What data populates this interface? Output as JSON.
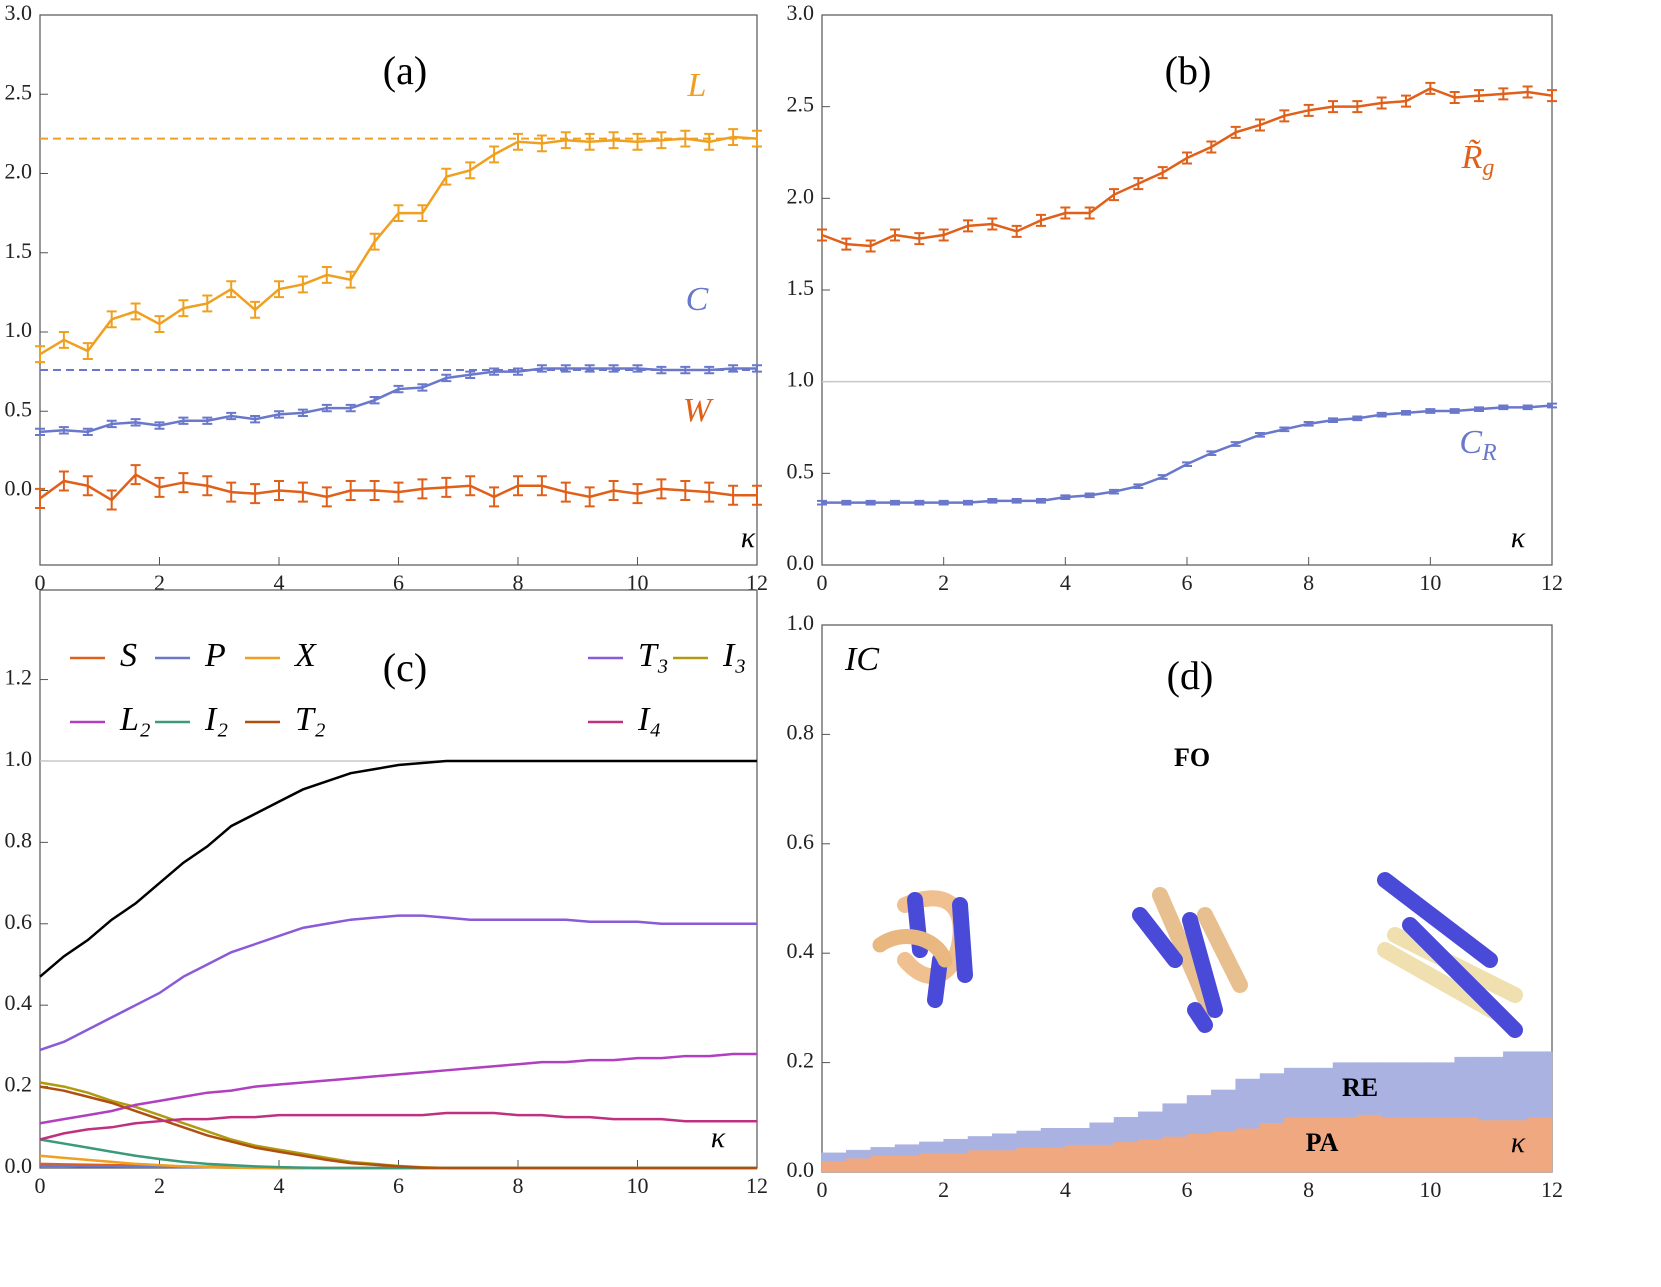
{
  "chart_data": [
    {
      "type": "line",
      "x": [
        0,
        0.4,
        0.8,
        1.2,
        1.6,
        2,
        2.4,
        2.8,
        3.2,
        3.6,
        4,
        4.4,
        4.8,
        5.2,
        5.6,
        6,
        6.4,
        6.8,
        7.2,
        7.6,
        8,
        8.4,
        8.8,
        9.2,
        9.6,
        10,
        10.4,
        10.8,
        11.2,
        11.6,
        12
      ],
      "series": [
        {
          "name": "L",
          "color": "#f0a020",
          "error": 0.05,
          "values": [
            0.86,
            0.95,
            0.88,
            1.08,
            1.13,
            1.05,
            1.15,
            1.18,
            1.27,
            1.14,
            1.27,
            1.3,
            1.36,
            1.33,
            1.57,
            1.75,
            1.75,
            1.98,
            2.02,
            2.12,
            2.2,
            2.19,
            2.21,
            2.2,
            2.21,
            2.2,
            2.21,
            2.22,
            2.2,
            2.23,
            2.22
          ]
        },
        {
          "name": "C",
          "color": "#6a78cc",
          "error": 0.02,
          "values": [
            0.37,
            0.38,
            0.37,
            0.42,
            0.43,
            0.41,
            0.44,
            0.44,
            0.47,
            0.45,
            0.48,
            0.49,
            0.52,
            0.52,
            0.57,
            0.64,
            0.65,
            0.71,
            0.73,
            0.75,
            0.75,
            0.77,
            0.77,
            0.77,
            0.77,
            0.77,
            0.76,
            0.76,
            0.76,
            0.77,
            0.77
          ]
        },
        {
          "name": "W",
          "color": "#e0601a",
          "error": 0.06,
          "values": [
            -0.05,
            0.06,
            0.03,
            -0.06,
            0.1,
            0.02,
            0.05,
            0.03,
            -0.01,
            -0.02,
            0,
            -0.01,
            -0.04,
            0,
            0,
            -0.01,
            0.01,
            0.02,
            0.03,
            -0.04,
            0.03,
            0.03,
            -0.01,
            -0.04,
            0,
            -0.02,
            0.01,
            0,
            -0.01,
            -0.03,
            -0.03
          ]
        }
      ],
      "hlines": [
        {
          "value": 2.22,
          "color": "#f0a020",
          "dashed": true
        },
        {
          "value": 0.76,
          "color": "#6a78cc",
          "dashed": true
        }
      ],
      "annotations": [
        {
          "text": "(a)",
          "color": "#000"
        },
        {
          "text": "L",
          "color": "#f0a020"
        },
        {
          "text": "C",
          "color": "#6a78cc"
        },
        {
          "text": "W",
          "color": "#e0601a"
        },
        {
          "text": "κ",
          "color": "#000"
        }
      ],
      "xlim": [
        0,
        12
      ],
      "xticks": [
        0,
        2,
        4,
        6,
        8,
        10,
        12
      ],
      "ylim": [
        -0.47,
        3
      ],
      "yticks": [
        {
          "value": 0,
          "label": "0.0"
        },
        0.5,
        {
          "value": 1,
          "label": "1.0"
        },
        1.5,
        {
          "value": 2,
          "label": "2.0"
        },
        2.5,
        {
          "value": 3,
          "label": "3.0"
        }
      ]
    },
    {
      "type": "line",
      "x": [
        0,
        0.4,
        0.8,
        1.2,
        1.6,
        2,
        2.4,
        2.8,
        3.2,
        3.6,
        4,
        4.4,
        4.8,
        5.2,
        5.6,
        6,
        6.4,
        6.8,
        7.2,
        7.6,
        8,
        8.4,
        8.8,
        9.2,
        9.6,
        10,
        10.4,
        10.8,
        11.2,
        11.6,
        12
      ],
      "series": [
        {
          "color": "#e0601a",
          "error": 0.03,
          "values": [
            1.8,
            1.75,
            1.74,
            1.8,
            1.78,
            1.8,
            1.85,
            1.86,
            1.82,
            1.88,
            1.92,
            1.92,
            2.02,
            2.08,
            2.14,
            2.22,
            2.28,
            2.36,
            2.4,
            2.45,
            2.48,
            2.5,
            2.5,
            2.52,
            2.53,
            2.6,
            2.55,
            2.56,
            2.57,
            2.58,
            2.56
          ]
        },
        {
          "color": "#6a78cc",
          "error": 0.01,
          "values": [
            0.34,
            0.34,
            0.34,
            0.34,
            0.34,
            0.34,
            0.34,
            0.35,
            0.35,
            0.35,
            0.37,
            0.38,
            0.4,
            0.43,
            0.48,
            0.55,
            0.61,
            0.66,
            0.71,
            0.74,
            0.77,
            0.79,
            0.8,
            0.82,
            0.83,
            0.84,
            0.84,
            0.85,
            0.86,
            0.86,
            0.87
          ]
        }
      ],
      "hlines": [
        {
          "value": 1,
          "color": "#c8c8c8",
          "dashed": false
        }
      ],
      "annotations": [
        {
          "text": "(b)",
          "color": "#000"
        },
        {
          "text": "R̃",
          "sub": "g",
          "color": "#e0601a"
        },
        {
          "text": "C",
          "sub": "R",
          "color": "#6a78cc"
        },
        {
          "text": "κ",
          "color": "#000"
        }
      ],
      "xlim": [
        0,
        12
      ],
      "xticks": [
        0,
        2,
        4,
        6,
        8,
        10,
        12
      ],
      "ylim": [
        0,
        3
      ],
      "yticks": [
        {
          "value": 0,
          "label": "0.0"
        },
        0.5,
        {
          "value": 1,
          "label": "1.0"
        },
        1.5,
        {
          "value": 2,
          "label": "2.0"
        },
        2.5,
        {
          "value": 3,
          "label": "3.0"
        }
      ]
    },
    {
      "type": "line",
      "x": [
        0,
        0.4,
        0.8,
        1.2,
        1.6,
        2,
        2.4,
        2.8,
        3.2,
        3.6,
        4,
        4.4,
        4.8,
        5.2,
        5.6,
        6,
        6.4,
        6.8,
        7.2,
        7.6,
        8,
        8.4,
        8.8,
        9.2,
        9.6,
        10,
        10.4,
        10.8,
        11.2,
        11.6,
        12
      ],
      "series": [
        {
          "name": "S",
          "color": "#e0601a",
          "values": [
            0.01,
            0.009,
            0.008,
            0.007,
            0.006,
            0.005,
            0.004,
            0.003,
            0.002,
            0.001,
            0,
            0,
            0,
            0,
            0,
            0,
            0,
            0,
            0,
            0,
            0,
            0,
            0,
            0,
            0,
            0,
            0,
            0,
            0,
            0,
            0
          ]
        },
        {
          "name": "P",
          "color": "#6a78cc",
          "values": [
            0.005,
            0.005,
            0.004,
            0.004,
            0.003,
            0.003,
            0.002,
            0.002,
            0.001,
            0.001,
            0,
            0,
            0,
            0,
            0,
            0,
            0,
            0,
            0,
            0,
            0,
            0,
            0,
            0,
            0,
            0,
            0,
            0,
            0,
            0,
            0
          ]
        },
        {
          "name": "X",
          "color": "#f0a020",
          "values": [
            0.03,
            0.025,
            0.02,
            0.015,
            0.01,
            0.007,
            0.004,
            0.002,
            0.001,
            0,
            0,
            0,
            0,
            0,
            0,
            0,
            0,
            0,
            0,
            0,
            0,
            0,
            0,
            0,
            0,
            0,
            0,
            0,
            0,
            0,
            0
          ]
        },
        {
          "name": "T₃",
          "color": "#8a5ad8",
          "values": [
            0.29,
            0.31,
            0.34,
            0.37,
            0.4,
            0.43,
            0.47,
            0.5,
            0.53,
            0.55,
            0.57,
            0.59,
            0.6,
            0.61,
            0.615,
            0.62,
            0.62,
            0.615,
            0.61,
            0.61,
            0.61,
            0.61,
            0.61,
            0.605,
            0.605,
            0.605,
            0.6,
            0.6,
            0.6,
            0.6,
            0.6
          ]
        },
        {
          "name": "I₃",
          "color": "#b09a10",
          "values": [
            0.21,
            0.2,
            0.185,
            0.165,
            0.15,
            0.13,
            0.11,
            0.09,
            0.07,
            0.055,
            0.045,
            0.035,
            0.025,
            0.015,
            0.01,
            0.005,
            0.002,
            0,
            0,
            0,
            0,
            0,
            0,
            0,
            0,
            0,
            0,
            0,
            0,
            0,
            0
          ]
        },
        {
          "name": "L₂",
          "color": "#b040c0",
          "values": [
            0.11,
            0.12,
            0.13,
            0.14,
            0.155,
            0.165,
            0.175,
            0.185,
            0.19,
            0.2,
            0.205,
            0.21,
            0.215,
            0.22,
            0.225,
            0.23,
            0.235,
            0.24,
            0.245,
            0.25,
            0.255,
            0.26,
            0.26,
            0.265,
            0.265,
            0.27,
            0.27,
            0.275,
            0.275,
            0.28,
            0.28
          ]
        },
        {
          "name": "I₂",
          "color": "#3a9a7a",
          "values": [
            0.07,
            0.06,
            0.05,
            0.04,
            0.03,
            0.022,
            0.015,
            0.01,
            0.007,
            0.004,
            0.002,
            0.001,
            0,
            0,
            0,
            0,
            0,
            0,
            0,
            0,
            0,
            0,
            0,
            0,
            0,
            0,
            0,
            0,
            0,
            0,
            0
          ]
        },
        {
          "name": "T₂",
          "color": "#b05010",
          "values": [
            0.2,
            0.19,
            0.175,
            0.16,
            0.14,
            0.12,
            0.1,
            0.08,
            0.065,
            0.05,
            0.04,
            0.03,
            0.02,
            0.012,
            0.008,
            0.004,
            0.001,
            0,
            0,
            0,
            0,
            0,
            0,
            0,
            0,
            0,
            0,
            0,
            0,
            0,
            0
          ]
        },
        {
          "name": "I₄",
          "color": "#c03080",
          "values": [
            0.07,
            0.085,
            0.095,
            0.1,
            0.11,
            0.115,
            0.12,
            0.12,
            0.125,
            0.125,
            0.13,
            0.13,
            0.13,
            0.13,
            0.13,
            0.13,
            0.13,
            0.135,
            0.135,
            0.135,
            0.13,
            0.13,
            0.125,
            0.125,
            0.12,
            0.12,
            0.12,
            0.115,
            0.115,
            0.115,
            0.115
          ]
        },
        {
          "color": "#000000",
          "values": [
            0.47,
            0.52,
            0.56,
            0.61,
            0.65,
            0.7,
            0.75,
            0.79,
            0.84,
            0.87,
            0.9,
            0.93,
            0.95,
            0.97,
            0.98,
            0.99,
            0.995,
            1,
            1,
            1,
            1,
            1,
            1,
            1,
            1,
            1,
            1,
            1,
            1,
            1,
            1
          ]
        }
      ],
      "hlines": [
        {
          "value": 1,
          "color": "#c8c8c8",
          "dashed": false
        }
      ],
      "annotations": [
        {
          "text": "(c)",
          "color": "#000"
        },
        {
          "text": "κ",
          "color": "#000"
        }
      ],
      "xlim": [
        0,
        12
      ],
      "xticks": [
        0,
        2,
        4,
        6,
        8,
        10,
        12
      ],
      "ylim": [
        0,
        1.42
      ],
      "yticks": [
        {
          "value": 0,
          "label": "0.0"
        },
        0.2,
        0.4,
        0.6,
        0.8,
        {
          "value": 1,
          "label": "1.0"
        },
        1.2
      ]
    },
    {
      "type": "histogram",
      "bins": [
        0,
        0.4,
        0.8,
        1.2,
        1.6,
        2,
        2.4,
        2.8,
        3.2,
        3.6,
        4,
        4.4,
        4.8,
        5.2,
        5.6,
        6,
        6.4,
        6.8,
        7.2,
        7.6,
        8,
        8.4,
        8.8,
        9.2,
        9.6,
        10,
        10.4,
        10.8,
        11.2,
        11.6,
        12
      ],
      "series": [
        {
          "name": "PA",
          "color": "#f0a880",
          "values": [
            0.02,
            0.025,
            0.03,
            0.03,
            0.035,
            0.035,
            0.04,
            0.04,
            0.045,
            0.045,
            0.05,
            0.05,
            0.055,
            0.06,
            0.065,
            0.07,
            0.075,
            0.08,
            0.09,
            0.1,
            0.1,
            0.1,
            0.105,
            0.1,
            0.1,
            0.1,
            0.1,
            0.095,
            0.095,
            0.1
          ]
        },
        {
          "name": "RE",
          "color": "#aab2e2",
          "values": [
            0.015,
            0.015,
            0.015,
            0.02,
            0.02,
            0.025,
            0.025,
            0.03,
            0.03,
            0.035,
            0.03,
            0.04,
            0.045,
            0.05,
            0.06,
            0.07,
            0.075,
            0.09,
            0.09,
            0.09,
            0.09,
            0.1,
            0.095,
            0.1,
            0.1,
            0.1,
            0.11,
            0.115,
            0.125,
            0.12
          ]
        }
      ],
      "annotations": [
        {
          "text": "IC",
          "color": "#000"
        },
        {
          "text": "(d)",
          "color": "#000"
        },
        {
          "text": "FO",
          "color": "#000"
        },
        {
          "text": "RE",
          "color": "#000"
        },
        {
          "text": "PA",
          "color": "#000"
        },
        {
          "text": "κ",
          "color": "#000"
        }
      ],
      "xlim": [
        0,
        12
      ],
      "xticks": [
        0,
        2,
        4,
        6,
        8,
        10,
        12
      ],
      "ylim": [
        0,
        1
      ],
      "yticks": [
        {
          "value": 0,
          "label": "0.0"
        },
        0.2,
        0.4,
        0.6,
        0.8,
        {
          "value": 1,
          "label": "1.0"
        }
      ]
    }
  ]
}
